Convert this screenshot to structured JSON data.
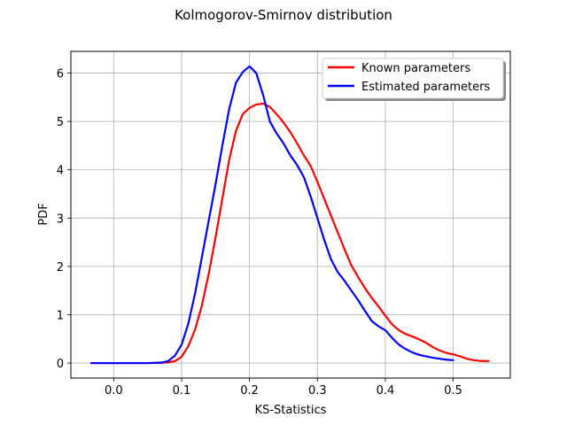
{
  "chart_data": {
    "type": "line",
    "title": "Kolmogorov-Smirnov distribution",
    "xlabel": "KS-Statistics",
    "ylabel": "PDF",
    "xlim": [
      -0.063,
      0.584
    ],
    "ylim": [
      -0.31,
      6.45
    ],
    "xticks": [
      0.0,
      0.1,
      0.2,
      0.3,
      0.4,
      0.5
    ],
    "xtick_labels": [
      "0.0",
      "0.1",
      "0.2",
      "0.3",
      "0.4",
      "0.5"
    ],
    "yticks": [
      0,
      1,
      2,
      3,
      4,
      5,
      6
    ],
    "ytick_labels": [
      "0",
      "1",
      "2",
      "3",
      "4",
      "5",
      "6"
    ],
    "grid": true,
    "legend_position": "top-right",
    "series": [
      {
        "name": "Known parameters",
        "color": "#ff0000",
        "points": [
          [
            -0.033,
            0.0
          ],
          [
            0.0,
            0.0
          ],
          [
            0.05,
            0.0
          ],
          [
            0.07,
            0.005
          ],
          [
            0.08,
            0.015
          ],
          [
            0.09,
            0.04
          ],
          [
            0.1,
            0.13
          ],
          [
            0.11,
            0.35
          ],
          [
            0.12,
            0.7
          ],
          [
            0.13,
            1.2
          ],
          [
            0.14,
            1.85
          ],
          [
            0.15,
            2.6
          ],
          [
            0.16,
            3.4
          ],
          [
            0.17,
            4.2
          ],
          [
            0.18,
            4.8
          ],
          [
            0.19,
            5.15
          ],
          [
            0.2,
            5.28
          ],
          [
            0.21,
            5.35
          ],
          [
            0.22,
            5.37
          ],
          [
            0.23,
            5.3
          ],
          [
            0.24,
            5.15
          ],
          [
            0.25,
            4.98
          ],
          [
            0.26,
            4.78
          ],
          [
            0.27,
            4.55
          ],
          [
            0.28,
            4.3
          ],
          [
            0.29,
            4.08
          ],
          [
            0.3,
            3.75
          ],
          [
            0.31,
            3.4
          ],
          [
            0.32,
            3.05
          ],
          [
            0.33,
            2.7
          ],
          [
            0.34,
            2.35
          ],
          [
            0.35,
            2.02
          ],
          [
            0.36,
            1.78
          ],
          [
            0.37,
            1.55
          ],
          [
            0.38,
            1.35
          ],
          [
            0.39,
            1.17
          ],
          [
            0.4,
            0.98
          ],
          [
            0.41,
            0.8
          ],
          [
            0.42,
            0.68
          ],
          [
            0.43,
            0.6
          ],
          [
            0.44,
            0.55
          ],
          [
            0.45,
            0.49
          ],
          [
            0.46,
            0.42
          ],
          [
            0.47,
            0.33
          ],
          [
            0.48,
            0.26
          ],
          [
            0.49,
            0.21
          ],
          [
            0.5,
            0.18
          ],
          [
            0.51,
            0.14
          ],
          [
            0.52,
            0.09
          ],
          [
            0.53,
            0.06
          ],
          [
            0.54,
            0.045
          ],
          [
            0.552,
            0.04
          ]
        ]
      },
      {
        "name": "Estimated parameters",
        "color": "#0000ff",
        "points": [
          [
            -0.033,
            0.0
          ],
          [
            0.0,
            0.0
          ],
          [
            0.05,
            0.0
          ],
          [
            0.07,
            0.01
          ],
          [
            0.08,
            0.04
          ],
          [
            0.09,
            0.15
          ],
          [
            0.1,
            0.38
          ],
          [
            0.11,
            0.82
          ],
          [
            0.12,
            1.45
          ],
          [
            0.13,
            2.2
          ],
          [
            0.14,
            2.95
          ],
          [
            0.15,
            3.7
          ],
          [
            0.16,
            4.5
          ],
          [
            0.17,
            5.25
          ],
          [
            0.18,
            5.8
          ],
          [
            0.19,
            6.02
          ],
          [
            0.2,
            6.14
          ],
          [
            0.21,
            6.0
          ],
          [
            0.22,
            5.55
          ],
          [
            0.23,
            5.0
          ],
          [
            0.24,
            4.75
          ],
          [
            0.25,
            4.55
          ],
          [
            0.26,
            4.3
          ],
          [
            0.27,
            4.1
          ],
          [
            0.28,
            3.85
          ],
          [
            0.29,
            3.45
          ],
          [
            0.3,
            3.0
          ],
          [
            0.31,
            2.55
          ],
          [
            0.32,
            2.15
          ],
          [
            0.33,
            1.88
          ],
          [
            0.34,
            1.7
          ],
          [
            0.35,
            1.5
          ],
          [
            0.36,
            1.3
          ],
          [
            0.37,
            1.08
          ],
          [
            0.38,
            0.87
          ],
          [
            0.39,
            0.76
          ],
          [
            0.4,
            0.68
          ],
          [
            0.41,
            0.52
          ],
          [
            0.42,
            0.38
          ],
          [
            0.43,
            0.29
          ],
          [
            0.44,
            0.22
          ],
          [
            0.45,
            0.17
          ],
          [
            0.46,
            0.14
          ],
          [
            0.47,
            0.11
          ],
          [
            0.48,
            0.09
          ],
          [
            0.49,
            0.07
          ],
          [
            0.5,
            0.06
          ]
        ]
      }
    ]
  }
}
